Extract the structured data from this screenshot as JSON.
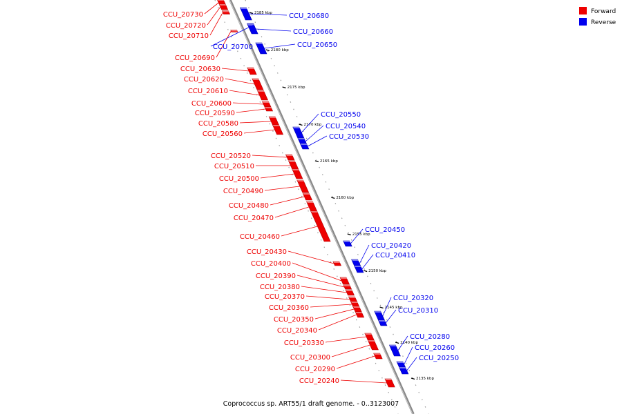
{
  "legend": [
    {
      "label": "Forward",
      "color": "#ee0000"
    },
    {
      "label": "Reverse",
      "color": "#0000ee"
    }
  ],
  "caption": "Coprococcus sp. ART55/1 draft genome. - 0..3123007",
  "ticks": [
    "2185 kbp",
    "2180 kbp",
    "2175 kbp",
    "2170 kbp",
    "2165 kbp",
    "2160 kbp",
    "2155 kbp",
    "2150 kbp",
    "2145 kbp",
    "2140 kbp",
    "2135 kbp"
  ],
  "genes": [
    {
      "name": "CCU_20730",
      "strand": "forward"
    },
    {
      "name": "CCU_20720",
      "strand": "forward"
    },
    {
      "name": "CCU_20710",
      "strand": "forward"
    },
    {
      "name": "CCU_20700",
      "strand": "reverse"
    },
    {
      "name": "CCU_20690",
      "strand": "forward"
    },
    {
      "name": "CCU_20680",
      "strand": "reverse"
    },
    {
      "name": "CCU_20660",
      "strand": "reverse"
    },
    {
      "name": "CCU_20650",
      "strand": "reverse"
    },
    {
      "name": "CCU_20630",
      "strand": "forward"
    },
    {
      "name": "CCU_20620",
      "strand": "forward"
    },
    {
      "name": "CCU_20610",
      "strand": "forward"
    },
    {
      "name": "CCU_20600",
      "strand": "forward"
    },
    {
      "name": "CCU_20590",
      "strand": "forward"
    },
    {
      "name": "CCU_20580",
      "strand": "forward"
    },
    {
      "name": "CCU_20560",
      "strand": "forward"
    },
    {
      "name": "CCU_20550",
      "strand": "reverse"
    },
    {
      "name": "CCU_20540",
      "strand": "reverse"
    },
    {
      "name": "CCU_20530",
      "strand": "reverse"
    },
    {
      "name": "CCU_20520",
      "strand": "forward"
    },
    {
      "name": "CCU_20510",
      "strand": "forward"
    },
    {
      "name": "CCU_20500",
      "strand": "forward"
    },
    {
      "name": "CCU_20490",
      "strand": "forward"
    },
    {
      "name": "CCU_20480",
      "strand": "forward"
    },
    {
      "name": "CCU_20470",
      "strand": "forward"
    },
    {
      "name": "CCU_20460",
      "strand": "forward"
    },
    {
      "name": "CCU_20450",
      "strand": "reverse"
    },
    {
      "name": "CCU_20430",
      "strand": "forward"
    },
    {
      "name": "CCU_20420",
      "strand": "reverse"
    },
    {
      "name": "CCU_20410",
      "strand": "reverse"
    },
    {
      "name": "CCU_20400",
      "strand": "forward"
    },
    {
      "name": "CCU_20390",
      "strand": "forward"
    },
    {
      "name": "CCU_20380",
      "strand": "forward"
    },
    {
      "name": "CCU_20370",
      "strand": "forward"
    },
    {
      "name": "CCU_20360",
      "strand": "forward"
    },
    {
      "name": "CCU_20350",
      "strand": "forward"
    },
    {
      "name": "CCU_20340",
      "strand": "forward"
    },
    {
      "name": "CCU_20330",
      "strand": "forward"
    },
    {
      "name": "CCU_20320",
      "strand": "reverse"
    },
    {
      "name": "CCU_20310",
      "strand": "reverse"
    },
    {
      "name": "CCU_20300",
      "strand": "forward"
    },
    {
      "name": "CCU_20290",
      "strand": "forward"
    },
    {
      "name": "CCU_20280",
      "strand": "reverse"
    },
    {
      "name": "CCU_20260",
      "strand": "reverse"
    },
    {
      "name": "CCU_20250",
      "strand": "reverse"
    },
    {
      "name": "CCU_20240",
      "strand": "forward"
    }
  ]
}
